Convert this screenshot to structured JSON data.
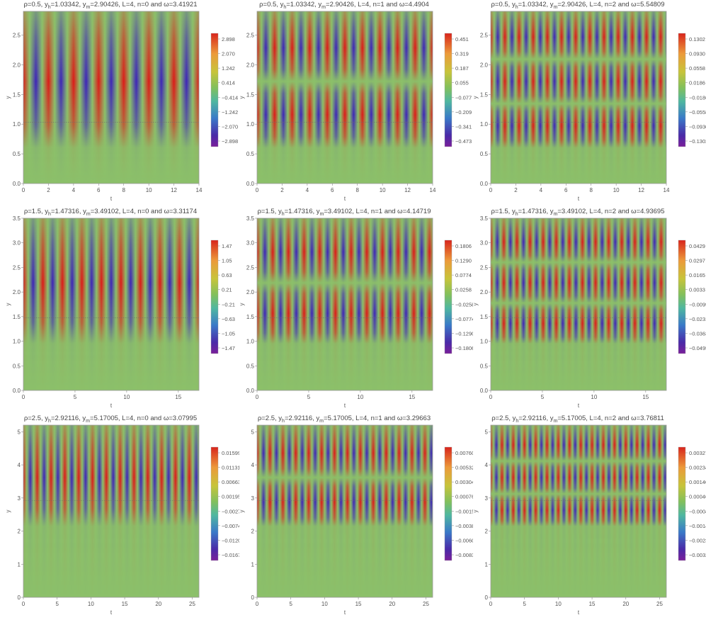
{
  "chart_data": [
    {
      "type": "heatmap",
      "title": "ρ=0.5, yh=1.03342, ym=2.90426, L=4, n=0 and ω=3.41921",
      "xlabel": "t",
      "ylabel": "y",
      "xlim": [
        0,
        14
      ],
      "ylim": [
        0,
        2.9
      ],
      "xticks": [
        "0",
        "2",
        "4",
        "6",
        "8",
        "10",
        "12",
        "14"
      ],
      "yticks": [
        "0.0",
        "0.5",
        "1.0",
        "1.5",
        "2.0",
        "2.5"
      ],
      "horizon": 1.03342,
      "n": 0,
      "periods": 7,
      "colorbar": [
        "2.898",
        "2.070",
        "1.242",
        "0.414",
        "−0.414",
        "−1.242",
        "−2.070",
        "−2.898"
      ]
    },
    {
      "type": "heatmap",
      "title": "ρ=0.5, yh=1.03342, ym=2.90426, L=4, n=1 and ω=4.4904",
      "xlabel": "t",
      "ylabel": "y",
      "xlim": [
        0,
        14
      ],
      "ylim": [
        0,
        2.9
      ],
      "xticks": [
        "0",
        "2",
        "4",
        "6",
        "8",
        "10",
        "12",
        "14"
      ],
      "yticks": [
        "0.0",
        "0.5",
        "1.0",
        "1.5",
        "2.0",
        "2.5"
      ],
      "horizon": 1.03342,
      "n": 1,
      "periods": 10,
      "colorbar": [
        "0.451",
        "0.319",
        "0.187",
        "0.055",
        "−0.077",
        "−0.209",
        "−0.341",
        "−0.473"
      ]
    },
    {
      "type": "heatmap",
      "title": "ρ=0.5, yh=1.03342, ym=2.90426, L=4, n=2 and ω=5.54809",
      "xlabel": "t",
      "ylabel": "y",
      "xlim": [
        0,
        14
      ],
      "ylim": [
        0,
        2.9
      ],
      "xticks": [
        "0",
        "2",
        "4",
        "6",
        "8",
        "10",
        "12",
        "14"
      ],
      "yticks": [
        "0.0",
        "0.5",
        "1.0",
        "1.5",
        "2.0",
        "2.5"
      ],
      "horizon": 1.03342,
      "n": 2,
      "periods": 12.4,
      "colorbar": [
        "0.1302",
        "0.0930",
        "0.0558",
        "0.0186",
        "−0.0186",
        "−0.0558",
        "−0.0930",
        "−0.1302"
      ]
    },
    {
      "type": "heatmap",
      "title": "ρ=1.5, yh=1.47316, ym=3.49102, L=4, n=0 and ω=3.31174",
      "xlabel": "t",
      "ylabel": "y",
      "xlim": [
        0,
        17
      ],
      "ylim": [
        0,
        3.5
      ],
      "xticks": [
        "0",
        "5",
        "10",
        "15"
      ],
      "yticks": [
        "0.0",
        "0.5",
        "1.0",
        "1.5",
        "2.0",
        "2.5",
        "3.0",
        "3.5"
      ],
      "horizon": 1.47316,
      "n": 0,
      "periods": 9,
      "colorbar": [
        "1.47",
        "1.05",
        "0.63",
        "0.21",
        "−0.21",
        "−0.63",
        "−1.05",
        "−1.47"
      ]
    },
    {
      "type": "heatmap",
      "title": "ρ=1.5, yh=1.47316, ym=3.49102, L=4, n=1 and ω=4.14719",
      "xlabel": "t",
      "ylabel": "y",
      "xlim": [
        0,
        17
      ],
      "ylim": [
        0,
        3.5
      ],
      "xticks": [
        "0",
        "5",
        "10",
        "15"
      ],
      "yticks": [
        "0.0",
        "0.5",
        "1.0",
        "1.5",
        "2.0",
        "2.5",
        "3.0",
        "3.5"
      ],
      "horizon": 1.47316,
      "n": 1,
      "periods": 11.2,
      "colorbar": [
        "0.1806",
        "0.1290",
        "0.0774",
        "0.0258",
        "−0.0258",
        "−0.0774",
        "−0.1290",
        "−0.1806"
      ]
    },
    {
      "type": "heatmap",
      "title": "ρ=1.5, yh=1.47316, ym=3.49102, L=4, n=2 and ω=4.93695",
      "xlabel": "t",
      "ylabel": "y",
      "xlim": [
        0,
        17
      ],
      "ylim": [
        0,
        3.5
      ],
      "xticks": [
        "0",
        "5",
        "10",
        "15"
      ],
      "yticks": [
        "0.0",
        "0.5",
        "1.0",
        "1.5",
        "2.0",
        "2.5",
        "3.0",
        "3.5"
      ],
      "horizon": 1.47316,
      "n": 2,
      "periods": 13.4,
      "colorbar": [
        "0.0429",
        "0.0297",
        "0.0165",
        "0.0033",
        "−0.0099",
        "−0.0231",
        "−0.0363",
        "−0.0495"
      ]
    },
    {
      "type": "heatmap",
      "title": "ρ=2.5, yh=2.92116, ym=5.17005, L=4, n=0 and ω=3.07995",
      "xlabel": "t",
      "ylabel": "y",
      "xlim": [
        0,
        26
      ],
      "ylim": [
        0,
        5.2
      ],
      "xticks": [
        "0",
        "5",
        "10",
        "15",
        "20",
        "25"
      ],
      "yticks": [
        "0",
        "1",
        "2",
        "3",
        "4",
        "5"
      ],
      "horizon": 2.92116,
      "n": 0,
      "periods": 12.7,
      "colorbar": [
        "0.01599",
        "0.01131",
        "0.00663",
        "0.00195",
        "−0.00273",
        "−0.00741",
        "−0.01209",
        "−0.01677"
      ]
    },
    {
      "type": "heatmap",
      "title": "ρ=2.5, yh=2.92116, ym=5.17005, L=4, n=1 and ω=3.29663",
      "xlabel": "t",
      "ylabel": "y",
      "xlim": [
        0,
        26
      ],
      "ylim": [
        0,
        5.2
      ],
      "xticks": [
        "0",
        "5",
        "10",
        "15",
        "20",
        "25"
      ],
      "yticks": [
        "0",
        "1",
        "2",
        "3",
        "4",
        "5"
      ],
      "horizon": 2.92116,
      "n": 1,
      "periods": 13.6,
      "colorbar": [
        "0.00760",
        "0.00532",
        "0.00304",
        "0.00076",
        "−0.00152",
        "−0.00380",
        "−0.00608",
        "−0.00836"
      ]
    },
    {
      "type": "heatmap",
      "title": "ρ=2.5, yh=2.92116, ym=5.17005, L=4, n=2 and ω=3.76811",
      "xlabel": "t",
      "ylabel": "y",
      "xlim": [
        0,
        26
      ],
      "ylim": [
        0,
        5.2
      ],
      "xticks": [
        "0",
        "5",
        "10",
        "15",
        "20",
        "25"
      ],
      "yticks": [
        "0",
        "1",
        "2",
        "3",
        "4",
        "5"
      ],
      "horizon": 2.92116,
      "n": 2,
      "periods": 15.6,
      "colorbar": [
        "0.003276",
        "0.002340",
        "0.001404",
        "0.000468",
        "−0.000468",
        "−0.001404",
        "−0.002340",
        "−0.003276"
      ]
    }
  ]
}
